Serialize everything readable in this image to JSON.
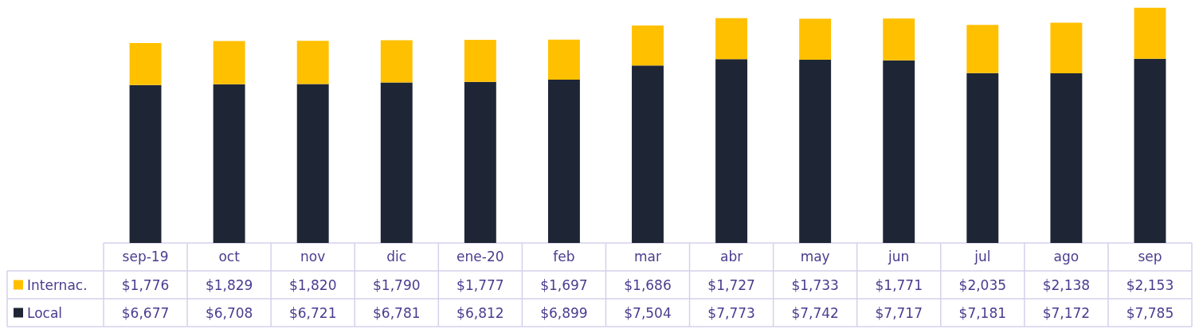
{
  "chart_data": {
    "type": "bar",
    "stacked": true,
    "legend": "bottom left",
    "grid": false,
    "categories": [
      "sep-19",
      "oct",
      "nov",
      "dic",
      "ene-20",
      "feb",
      "mar",
      "abr",
      "may",
      "jun",
      "jul",
      "ago",
      "sep"
    ],
    "series": [
      {
        "name": "Local",
        "color": "#1e2636",
        "values": [
          6677,
          6708,
          6721,
          6781,
          6812,
          6899,
          7504,
          7773,
          7742,
          7717,
          7181,
          7172,
          7785
        ],
        "value_labels": [
          "$6,677",
          "$6,708",
          "$6,721",
          "$6,781",
          "$6,812",
          "$6,899",
          "$7,504",
          "$7,773",
          "$7,742",
          "$7,717",
          "$7,181",
          "$7,172",
          "$7,785"
        ]
      },
      {
        "name": "Internac.",
        "color": "#ffc000",
        "values": [
          1776,
          1829,
          1820,
          1790,
          1777,
          1697,
          1686,
          1727,
          1733,
          1771,
          2035,
          2138,
          2153
        ],
        "value_labels": [
          "$1,776",
          "$1,829",
          "$1,820",
          "$1,790",
          "$1,777",
          "$1,697",
          "$1,686",
          "$1,727",
          "$1,733",
          "$1,771",
          "$2,035",
          "$2,138",
          "$2,153"
        ]
      }
    ]
  }
}
